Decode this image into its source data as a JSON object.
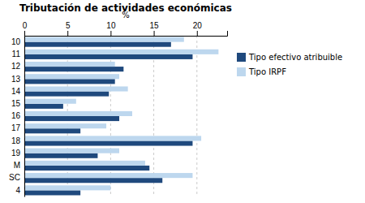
{
  "chart_data": {
    "type": "bar",
    "orientation": "horizontal",
    "title": "Tributación de actividades económicas",
    "xlabel": "%",
    "categories": [
      "10",
      "11",
      "12",
      "13",
      "14",
      "15",
      "16",
      "17",
      "18",
      "19",
      "M",
      "SC",
      "4"
    ],
    "series": [
      {
        "name": "Tipo efectivo atribuible",
        "color": "#1F497D",
        "values": [
          17.0,
          19.5,
          11.5,
          10.5,
          9.8,
          4.5,
          11.0,
          6.5,
          19.5,
          8.5,
          14.5,
          16.0,
          6.5
        ]
      },
      {
        "name": "Tipo IRPF",
        "color": "#BDD7EE",
        "values": [
          18.5,
          22.5,
          10.5,
          11.0,
          12.0,
          6.0,
          12.5,
          9.5,
          20.5,
          11.0,
          14.0,
          19.5,
          10.0
        ]
      }
    ],
    "xlim": [
      0,
      23.5
    ],
    "xticks": [
      0,
      5,
      10,
      15,
      20
    ],
    "grid": true,
    "legend": "right"
  }
}
